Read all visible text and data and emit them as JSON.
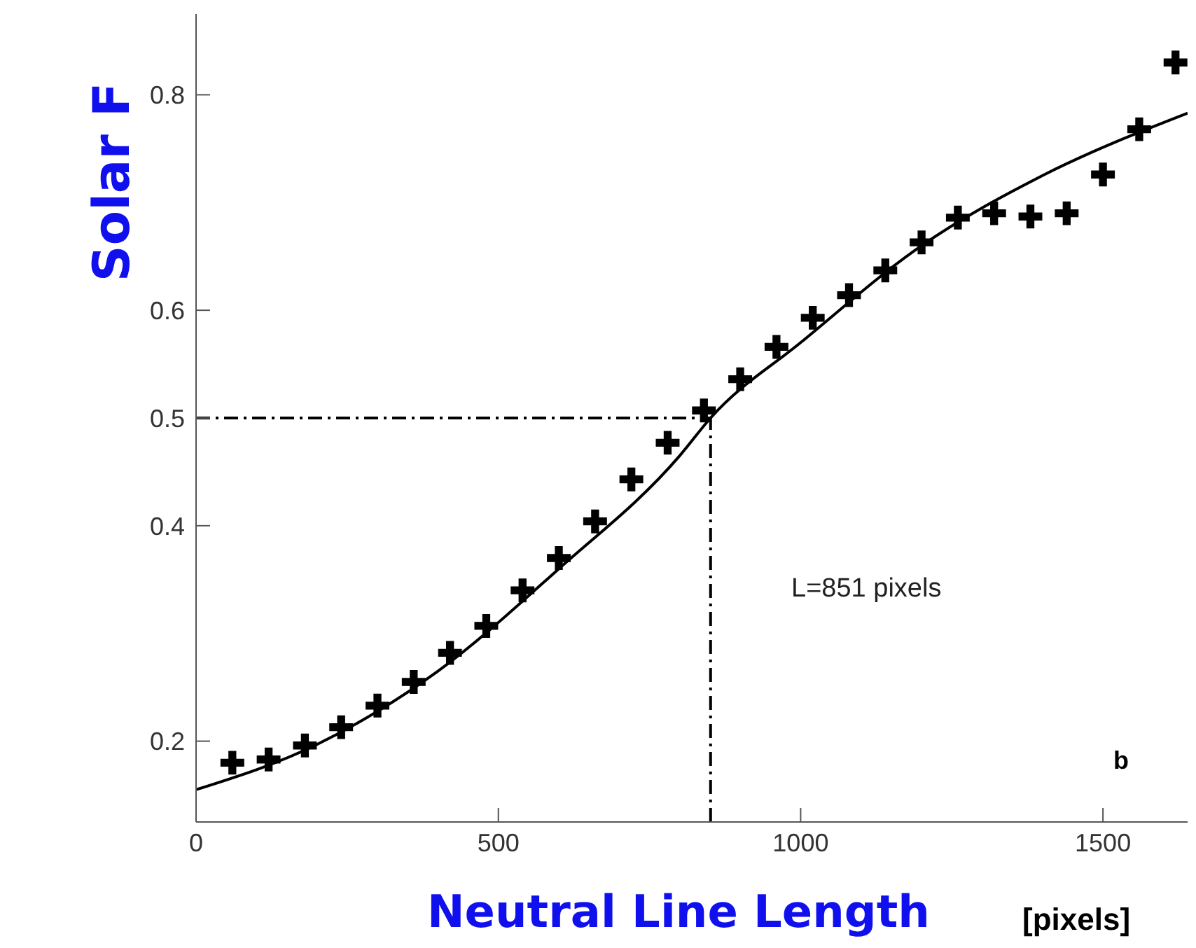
{
  "chart_data": {
    "type": "scatter",
    "xlabel": "Neutral Line Length",
    "ylabel": "Solar F",
    "xlim": [
      0,
      1640
    ],
    "xticks": [
      0,
      500,
      1000,
      1500
    ],
    "ylim": [
      0.125,
      0.875
    ],
    "yticks": [
      0.2,
      0.4,
      0.5,
      0.6,
      0.8
    ],
    "grid": false,
    "legend": false,
    "series": [
      {
        "type": "scatter",
        "marker": "cross",
        "color": "#000000",
        "x": [
          60,
          120,
          180,
          240,
          300,
          360,
          420,
          480,
          540,
          600,
          660,
          720,
          780,
          840,
          900,
          960,
          1020,
          1080,
          1140,
          1200,
          1260,
          1320,
          1380,
          1440,
          1500,
          1560,
          1620
        ],
        "values": [
          0.18,
          0.183,
          0.196,
          0.213,
          0.233,
          0.255,
          0.282,
          0.307,
          0.34,
          0.37,
          0.404,
          0.443,
          0.477,
          0.507,
          0.536,
          0.566,
          0.593,
          0.614,
          0.637,
          0.663,
          0.686,
          0.69,
          0.687,
          0.69,
          0.726,
          0.768,
          0.83
        ]
      },
      {
        "type": "line",
        "marker": "none",
        "color": "#000000",
        "line_style": "solid",
        "x": [
          0,
          200,
          400,
          600,
          800,
          851,
          1000,
          1200,
          1400,
          1640
        ],
        "values": [
          0.155,
          0.197,
          0.265,
          0.36,
          0.465,
          0.5,
          0.57,
          0.66,
          0.725,
          0.783
        ]
      }
    ],
    "ref_lines": [
      {
        "axis": "x",
        "value": 851,
        "line_style": "dashed",
        "color": "#000000"
      },
      {
        "axis": "y",
        "value": 0.5,
        "line_style": "dashed",
        "color": "#000000"
      }
    ],
    "annotations": [
      "b",
      "[pixels]",
      "L=851 pixels"
    ]
  }
}
